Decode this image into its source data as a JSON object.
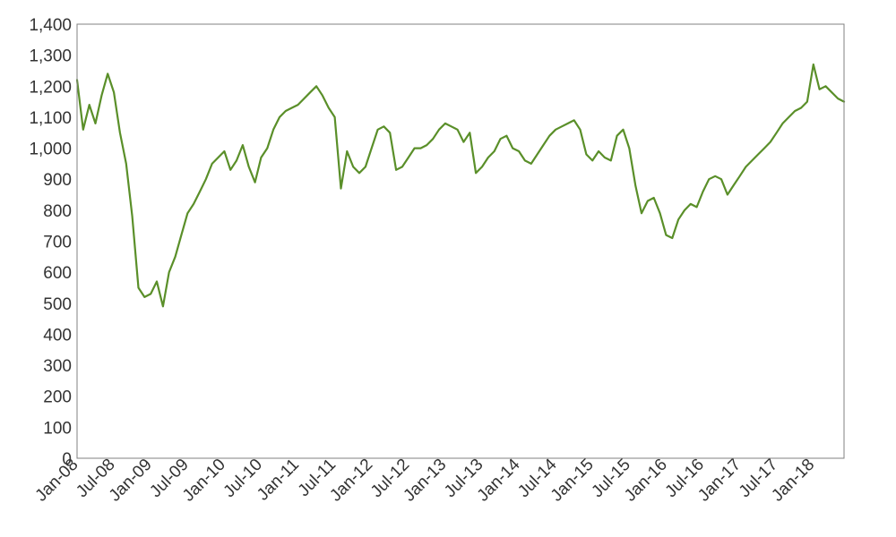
{
  "chart_data": {
    "type": "line",
    "title": "",
    "xlabel": "",
    "ylabel": "",
    "x_range": [
      "2008-01",
      "2018-06"
    ],
    "ylim": [
      0,
      1400
    ],
    "y_ticks": [
      0,
      100,
      200,
      300,
      400,
      500,
      600,
      700,
      800,
      900,
      1000,
      1100,
      1200,
      1300,
      1400
    ],
    "y_tick_labels": [
      "0",
      "100",
      "200",
      "300",
      "400",
      "500",
      "600",
      "700",
      "800",
      "900",
      "1,000",
      "1,100",
      "1,200",
      "1,300",
      "1,400"
    ],
    "x_ticks": [
      "2008-01",
      "2008-07",
      "2009-01",
      "2009-07",
      "2010-01",
      "2010-07",
      "2011-01",
      "2011-07",
      "2012-01",
      "2012-07",
      "2013-01",
      "2013-07",
      "2014-01",
      "2014-07",
      "2015-01",
      "2015-07",
      "2016-01",
      "2016-07",
      "2017-01",
      "2017-07",
      "2018-01"
    ],
    "x_tick_labels": [
      "Jan-08",
      "Jul-08",
      "Jan-09",
      "Jul-09",
      "Jan-10",
      "Jul-10",
      "Jan-11",
      "Jul-11",
      "Jan-12",
      "Jul-12",
      "Jan-13",
      "Jul-13",
      "Jan-14",
      "Jul-14",
      "Jan-15",
      "Jul-15",
      "Jan-16",
      "Jul-16",
      "Jan-17",
      "Jul-17",
      "Jan-18"
    ],
    "grid": false,
    "series": [
      {
        "color": "#5a8f29",
        "points": [
          [
            "2008-01",
            1220
          ],
          [
            "2008-02",
            1060
          ],
          [
            "2008-03",
            1140
          ],
          [
            "2008-04",
            1080
          ],
          [
            "2008-05",
            1170
          ],
          [
            "2008-06",
            1240
          ],
          [
            "2008-07",
            1180
          ],
          [
            "2008-08",
            1050
          ],
          [
            "2008-09",
            950
          ],
          [
            "2008-10",
            780
          ],
          [
            "2008-11",
            550
          ],
          [
            "2008-12",
            520
          ],
          [
            "2009-01",
            530
          ],
          [
            "2009-02",
            570
          ],
          [
            "2009-03",
            490
          ],
          [
            "2009-04",
            600
          ],
          [
            "2009-05",
            650
          ],
          [
            "2009-06",
            720
          ],
          [
            "2009-07",
            790
          ],
          [
            "2009-08",
            820
          ],
          [
            "2009-09",
            860
          ],
          [
            "2009-10",
            900
          ],
          [
            "2009-11",
            950
          ],
          [
            "2009-12",
            970
          ],
          [
            "2010-01",
            990
          ],
          [
            "2010-02",
            930
          ],
          [
            "2010-03",
            960
          ],
          [
            "2010-04",
            1010
          ],
          [
            "2010-05",
            940
          ],
          [
            "2010-06",
            890
          ],
          [
            "2010-07",
            970
          ],
          [
            "2010-08",
            1000
          ],
          [
            "2010-09",
            1060
          ],
          [
            "2010-10",
            1100
          ],
          [
            "2010-11",
            1120
          ],
          [
            "2010-12",
            1130
          ],
          [
            "2011-01",
            1140
          ],
          [
            "2011-02",
            1160
          ],
          [
            "2011-03",
            1180
          ],
          [
            "2011-04",
            1200
          ],
          [
            "2011-05",
            1170
          ],
          [
            "2011-06",
            1130
          ],
          [
            "2011-07",
            1100
          ],
          [
            "2011-08",
            870
          ],
          [
            "2011-09",
            990
          ],
          [
            "2011-10",
            940
          ],
          [
            "2011-11",
            920
          ],
          [
            "2011-12",
            940
          ],
          [
            "2012-01",
            1000
          ],
          [
            "2012-02",
            1060
          ],
          [
            "2012-03",
            1070
          ],
          [
            "2012-04",
            1050
          ],
          [
            "2012-05",
            930
          ],
          [
            "2012-06",
            940
          ],
          [
            "2012-07",
            970
          ],
          [
            "2012-08",
            1000
          ],
          [
            "2012-09",
            1000
          ],
          [
            "2012-10",
            1010
          ],
          [
            "2012-11",
            1030
          ],
          [
            "2012-12",
            1060
          ],
          [
            "2013-01",
            1080
          ],
          [
            "2013-02",
            1070
          ],
          [
            "2013-03",
            1060
          ],
          [
            "2013-04",
            1020
          ],
          [
            "2013-05",
            1050
          ],
          [
            "2013-06",
            920
          ],
          [
            "2013-07",
            940
          ],
          [
            "2013-08",
            970
          ],
          [
            "2013-09",
            990
          ],
          [
            "2013-10",
            1030
          ],
          [
            "2013-11",
            1040
          ],
          [
            "2013-12",
            1000
          ],
          [
            "2014-01",
            990
          ],
          [
            "2014-02",
            960
          ],
          [
            "2014-03",
            950
          ],
          [
            "2014-04",
            980
          ],
          [
            "2014-05",
            1010
          ],
          [
            "2014-06",
            1040
          ],
          [
            "2014-07",
            1060
          ],
          [
            "2014-08",
            1070
          ],
          [
            "2014-09",
            1080
          ],
          [
            "2014-10",
            1090
          ],
          [
            "2014-11",
            1060
          ],
          [
            "2014-12",
            980
          ],
          [
            "2015-01",
            960
          ],
          [
            "2015-02",
            990
          ],
          [
            "2015-03",
            970
          ],
          [
            "2015-04",
            960
          ],
          [
            "2015-05",
            1040
          ],
          [
            "2015-06",
            1060
          ],
          [
            "2015-07",
            1000
          ],
          [
            "2015-08",
            880
          ],
          [
            "2015-09",
            790
          ],
          [
            "2015-10",
            830
          ],
          [
            "2015-11",
            840
          ],
          [
            "2015-12",
            790
          ],
          [
            "2016-01",
            720
          ],
          [
            "2016-02",
            710
          ],
          [
            "2016-03",
            770
          ],
          [
            "2016-04",
            800
          ],
          [
            "2016-05",
            820
          ],
          [
            "2016-06",
            810
          ],
          [
            "2016-07",
            860
          ],
          [
            "2016-08",
            900
          ],
          [
            "2016-09",
            910
          ],
          [
            "2016-10",
            900
          ],
          [
            "2016-11",
            850
          ],
          [
            "2016-12",
            880
          ],
          [
            "2017-01",
            910
          ],
          [
            "2017-02",
            940
          ],
          [
            "2017-03",
            960
          ],
          [
            "2017-04",
            980
          ],
          [
            "2017-05",
            1000
          ],
          [
            "2017-06",
            1020
          ],
          [
            "2017-07",
            1050
          ],
          [
            "2017-08",
            1080
          ],
          [
            "2017-09",
            1100
          ],
          [
            "2017-10",
            1120
          ],
          [
            "2017-11",
            1130
          ],
          [
            "2017-12",
            1150
          ],
          [
            "2018-01",
            1270
          ],
          [
            "2018-02",
            1190
          ],
          [
            "2018-03",
            1200
          ],
          [
            "2018-04",
            1180
          ],
          [
            "2018-05",
            1160
          ],
          [
            "2018-06",
            1150
          ]
        ]
      }
    ]
  }
}
